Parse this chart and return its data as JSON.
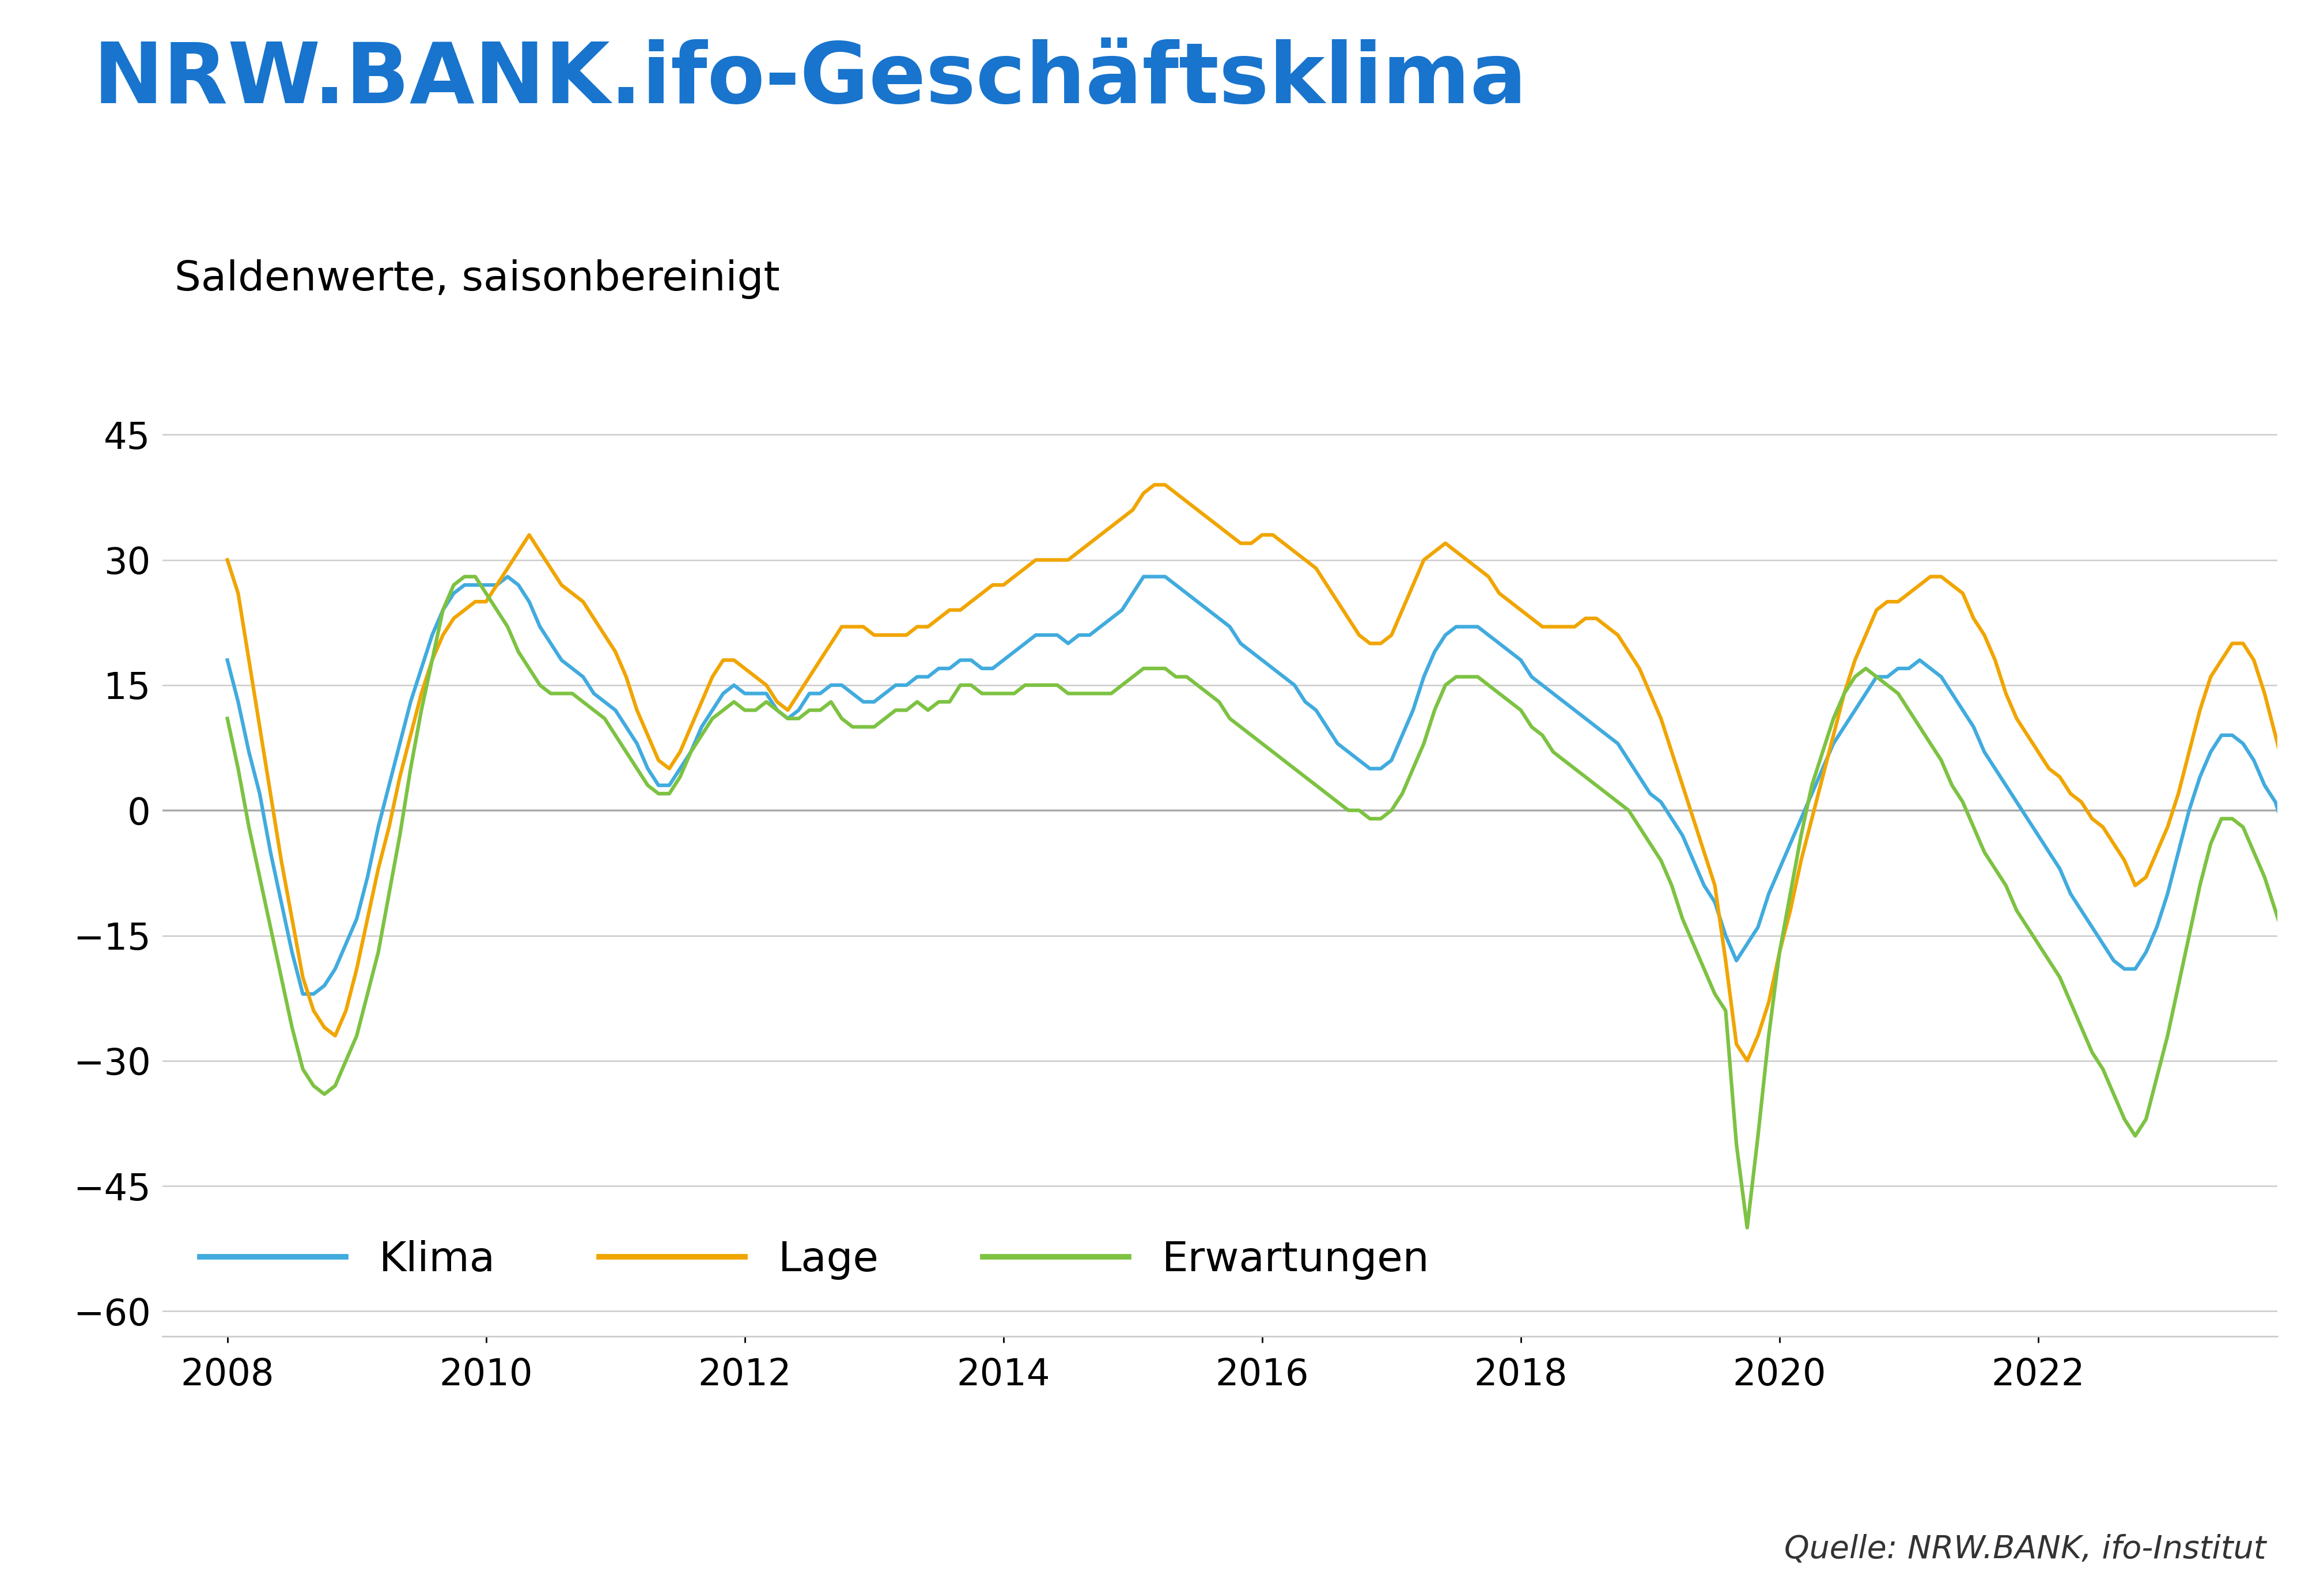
{
  "title": "NRW.BANK.ifo-Geschäftsklima",
  "subtitle": "Saldenwerte, saisonbereinigt",
  "source": "Quelle: NRW.BANK, ifo-Institut",
  "title_color": "#1874CD",
  "subtitle_color": "#000000",
  "klima_color": "#41ABDE",
  "lage_color": "#F0A500",
  "erwartungen_color": "#7DC242",
  "zero_line_color": "#AAAAAA",
  "grid_color": "#CCCCCC",
  "ylim": [
    -63,
    50
  ],
  "yticks": [
    -60,
    -45,
    -30,
    -15,
    0,
    15,
    30,
    45
  ],
  "xtick_years": [
    2008,
    2010,
    2012,
    2014,
    2016,
    2018,
    2020,
    2022
  ],
  "legend_labels": [
    "Klima",
    "Lage",
    "Erwartungen"
  ],
  "start_decimal": 2008.0,
  "klima": [
    18,
    13,
    7,
    2,
    -5,
    -11,
    -17,
    -22,
    -22,
    -21,
    -19,
    -16,
    -13,
    -8,
    -2,
    3,
    8,
    13,
    17,
    21,
    24,
    26,
    27,
    27,
    27,
    27,
    28,
    27,
    25,
    22,
    20,
    18,
    17,
    16,
    14,
    13,
    12,
    10,
    8,
    5,
    3,
    3,
    5,
    7,
    10,
    12,
    14,
    15,
    14,
    14,
    14,
    12,
    11,
    12,
    14,
    14,
    15,
    15,
    14,
    13,
    13,
    14,
    15,
    15,
    16,
    16,
    17,
    17,
    18,
    18,
    17,
    17,
    18,
    19,
    20,
    21,
    21,
    21,
    20,
    21,
    21,
    22,
    23,
    24,
    26,
    28,
    28,
    28,
    27,
    26,
    25,
    24,
    23,
    22,
    20,
    19,
    18,
    17,
    16,
    15,
    13,
    12,
    10,
    8,
    7,
    6,
    5,
    5,
    6,
    9,
    12,
    16,
    19,
    21,
    22,
    22,
    22,
    21,
    20,
    19,
    18,
    16,
    15,
    14,
    13,
    12,
    11,
    10,
    9,
    8,
    6,
    4,
    2,
    1,
    -1,
    -3,
    -6,
    -9,
    -11,
    -15,
    -18,
    -16,
    -14,
    -10,
    -7,
    -4,
    -1,
    2,
    5,
    8,
    10,
    12,
    14,
    16,
    16,
    17,
    17,
    18,
    17,
    16,
    14,
    12,
    10,
    7,
    5,
    3,
    1,
    -1,
    -3,
    -5,
    -7,
    -10,
    -12,
    -14,
    -16,
    -18,
    -19,
    -19,
    -17,
    -14,
    -10,
    -5,
    0,
    4,
    7,
    9,
    9,
    8,
    6,
    3,
    1,
    -3
  ],
  "lage": [
    30,
    26,
    18,
    10,
    2,
    -6,
    -13,
    -20,
    -24,
    -26,
    -27,
    -24,
    -19,
    -13,
    -7,
    -2,
    4,
    9,
    14,
    18,
    21,
    23,
    24,
    25,
    25,
    27,
    29,
    31,
    33,
    31,
    29,
    27,
    26,
    25,
    23,
    21,
    19,
    16,
    12,
    9,
    6,
    5,
    7,
    10,
    13,
    16,
    18,
    18,
    17,
    16,
    15,
    13,
    12,
    14,
    16,
    18,
    20,
    22,
    22,
    22,
    21,
    21,
    21,
    21,
    22,
    22,
    23,
    24,
    24,
    25,
    26,
    27,
    27,
    28,
    29,
    30,
    30,
    30,
    30,
    31,
    32,
    33,
    34,
    35,
    36,
    38,
    39,
    39,
    38,
    37,
    36,
    35,
    34,
    33,
    32,
    32,
    33,
    33,
    32,
    31,
    30,
    29,
    27,
    25,
    23,
    21,
    20,
    20,
    21,
    24,
    27,
    30,
    31,
    32,
    31,
    30,
    29,
    28,
    26,
    25,
    24,
    23,
    22,
    22,
    22,
    22,
    23,
    23,
    22,
    21,
    19,
    17,
    14,
    11,
    7,
    3,
    -1,
    -5,
    -9,
    -18,
    -28,
    -30,
    -27,
    -23,
    -17,
    -12,
    -6,
    -1,
    4,
    9,
    14,
    18,
    21,
    24,
    25,
    25,
    26,
    27,
    28,
    28,
    27,
    26,
    23,
    21,
    18,
    14,
    11,
    9,
    7,
    5,
    4,
    2,
    1,
    -1,
    -2,
    -4,
    -6,
    -9,
    -8,
    -5,
    -2,
    2,
    7,
    12,
    16,
    18,
    20,
    20,
    18,
    14,
    9,
    4
  ],
  "erwartungen": [
    11,
    5,
    -2,
    -8,
    -14,
    -20,
    -26,
    -31,
    -33,
    -34,
    -33,
    -30,
    -27,
    -22,
    -17,
    -10,
    -3,
    5,
    12,
    18,
    24,
    27,
    28,
    28,
    26,
    24,
    22,
    19,
    17,
    15,
    14,
    14,
    14,
    13,
    12,
    11,
    9,
    7,
    5,
    3,
    2,
    2,
    4,
    7,
    9,
    11,
    12,
    13,
    12,
    12,
    13,
    12,
    11,
    11,
    12,
    12,
    13,
    11,
    10,
    10,
    10,
    11,
    12,
    12,
    13,
    12,
    13,
    13,
    15,
    15,
    14,
    14,
    14,
    14,
    15,
    15,
    15,
    15,
    14,
    14,
    14,
    14,
    14,
    15,
    16,
    17,
    17,
    17,
    16,
    16,
    15,
    14,
    13,
    11,
    10,
    9,
    8,
    7,
    6,
    5,
    4,
    3,
    2,
    1,
    0,
    0,
    -1,
    -1,
    0,
    2,
    5,
    8,
    12,
    15,
    16,
    16,
    16,
    15,
    14,
    13,
    12,
    10,
    9,
    7,
    6,
    5,
    4,
    3,
    2,
    1,
    0,
    -2,
    -4,
    -6,
    -9,
    -13,
    -16,
    -19,
    -22,
    -24,
    -40,
    -50,
    -39,
    -27,
    -17,
    -10,
    -3,
    3,
    7,
    11,
    14,
    16,
    17,
    16,
    15,
    14,
    12,
    10,
    8,
    6,
    3,
    1,
    -2,
    -5,
    -7,
    -9,
    -12,
    -14,
    -16,
    -18,
    -20,
    -23,
    -26,
    -29,
    -31,
    -34,
    -37,
    -39,
    -37,
    -32,
    -27,
    -21,
    -15,
    -9,
    -4,
    -1,
    -1,
    -2,
    -5,
    -8,
    -12,
    -16
  ]
}
